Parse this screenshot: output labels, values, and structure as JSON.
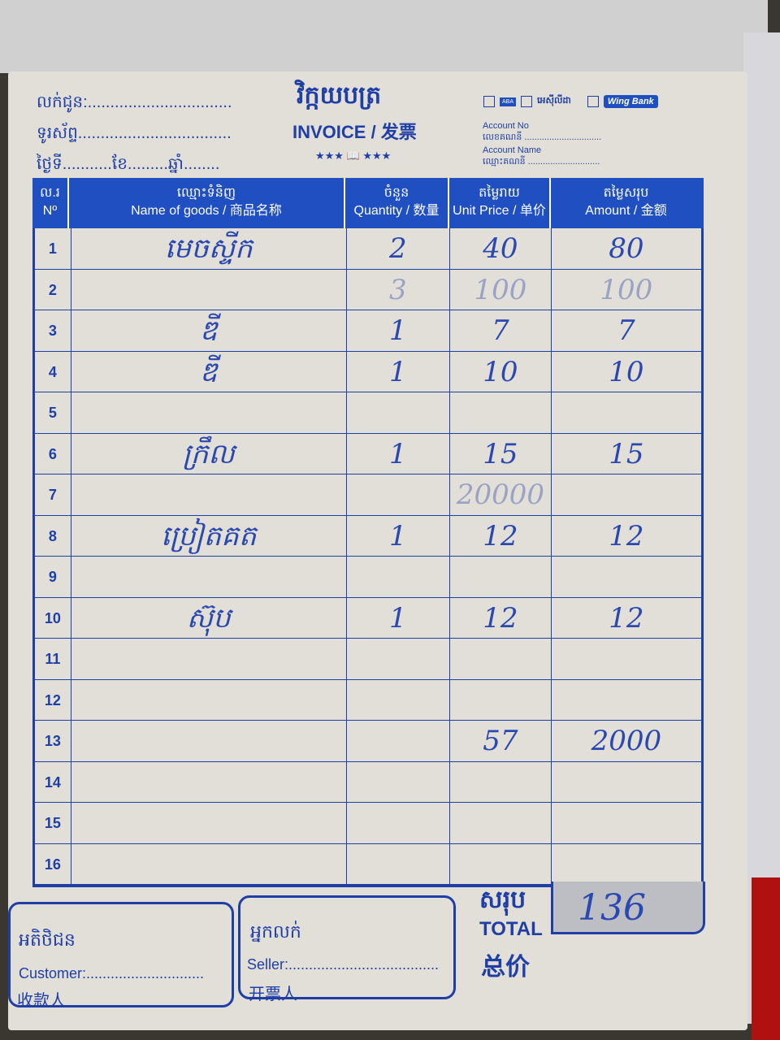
{
  "header": {
    "seller_label": "លក់ជូន:................................",
    "phone_label": "ទូរស័ព្ទ..................................",
    "date_label": "ថ្ងៃទី...........ខែ.........ឆ្នាំ........",
    "title_km": "វិក្កយបត្រ",
    "title": "INVOICE / 发票",
    "stars": "★★★ 📖 ★★★",
    "banks": [
      "ABA",
      "អេស៊ីលីដា",
      "Wing Bank"
    ],
    "account_no_label": "Account No",
    "account_no_km": "លេខគណនី ...............................",
    "account_name_label": "Account Name",
    "account_name_km": "ឈ្មោះគណនី ............................."
  },
  "columns": [
    {
      "km": "ល.រ",
      "en": "Nº"
    },
    {
      "km": "ឈ្មោះទំនិញ",
      "en": "Name of goods / 商品名称"
    },
    {
      "km": "ចំនួន",
      "en": "Quantity / 数量"
    },
    {
      "km": "តម្លៃរាយ",
      "en": "Unit Price / 单价"
    },
    {
      "km": "តម្លៃសរុប",
      "en": "Amount / 金额"
    }
  ],
  "rows": [
    {
      "no": "1",
      "name": "មេចស្ទីក",
      "qty": "2",
      "price": "40",
      "amount": "80"
    },
    {
      "no": "2",
      "name": "",
      "qty": "3",
      "price": "100",
      "amount": "100",
      "faint": true
    },
    {
      "no": "3",
      "name": "ឌី",
      "qty": "1",
      "price": "7",
      "amount": "7"
    },
    {
      "no": "4",
      "name": "ឌី",
      "qty": "1",
      "price": "10",
      "amount": "10"
    },
    {
      "no": "5",
      "name": "",
      "qty": "",
      "price": "",
      "amount": ""
    },
    {
      "no": "6",
      "name": "ក្រឹល",
      "qty": "1",
      "price": "15",
      "amount": "15"
    },
    {
      "no": "7",
      "name": "",
      "qty": "",
      "price": "20000",
      "amount": "",
      "faint": true
    },
    {
      "no": "8",
      "name": "ប្រៀតគត",
      "qty": "1",
      "price": "12",
      "amount": "12"
    },
    {
      "no": "9",
      "name": "",
      "qty": "",
      "price": "",
      "amount": ""
    },
    {
      "no": "10",
      "name": "ស៊ុប",
      "qty": "1",
      "price": "12",
      "amount": "12"
    },
    {
      "no": "11",
      "name": "",
      "qty": "",
      "price": "",
      "amount": ""
    },
    {
      "no": "12",
      "name": "",
      "qty": "",
      "price": "",
      "amount": ""
    },
    {
      "no": "13",
      "name": "",
      "qty": "",
      "price": "57",
      "amount": "2000"
    },
    {
      "no": "14",
      "name": "",
      "qty": "",
      "price": "",
      "amount": ""
    },
    {
      "no": "15",
      "name": "",
      "qty": "",
      "price": "",
      "amount": ""
    },
    {
      "no": "16",
      "name": "",
      "qty": "",
      "price": "",
      "amount": ""
    }
  ],
  "footer": {
    "customer_km": "អតិថិជន",
    "customer_label": "Customer:.............................",
    "customer_zh": "收款人",
    "seller_km": "អ្នកលក់",
    "seller_label": "Seller:.....................................",
    "seller_zh": "开票人",
    "total_km": "សរុប",
    "total_label": "TOTAL",
    "total_zh": "总价",
    "total_value": "136"
  }
}
